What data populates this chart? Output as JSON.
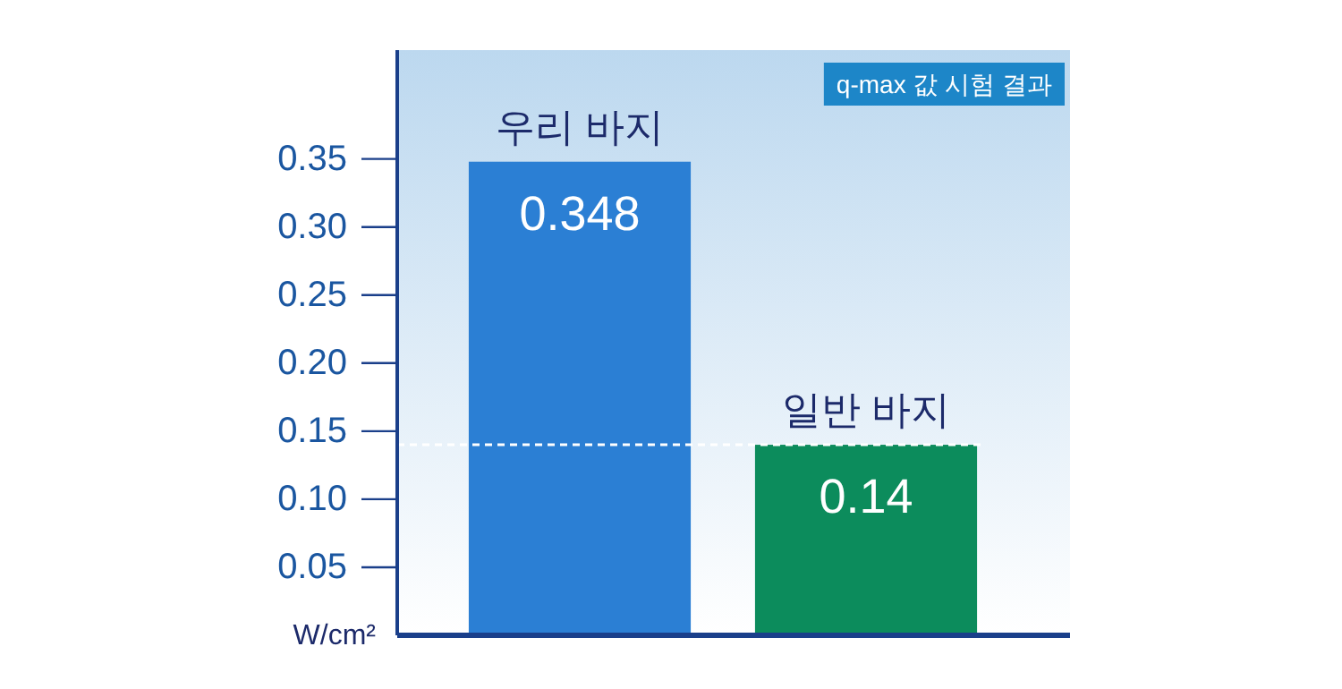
{
  "chart_data": {
    "type": "bar",
    "title": "q-max 값 시험 결과",
    "ylabel": "W/cm²",
    "categories": [
      "우리 바지",
      "일반 바지"
    ],
    "values": [
      0.348,
      0.14
    ],
    "colors": [
      "#2b7fd4",
      "#0c8c5c"
    ],
    "ylim": [
      0,
      0.43
    ],
    "yticks": [
      {
        "value": 0.05,
        "label": "0.05"
      },
      {
        "value": 0.1,
        "label": "0.10"
      },
      {
        "value": 0.15,
        "label": "0.15"
      },
      {
        "value": 0.2,
        "label": "0.20"
      },
      {
        "value": 0.25,
        "label": "0.25"
      },
      {
        "value": 0.3,
        "label": "0.30"
      },
      {
        "value": 0.35,
        "label": "0.35"
      }
    ],
    "ref_lines": [
      {
        "axis": "y",
        "value": 0.14,
        "color": "#ffffff",
        "line_style": "dashed"
      }
    ],
    "data_labels": true,
    "grid": false
  }
}
